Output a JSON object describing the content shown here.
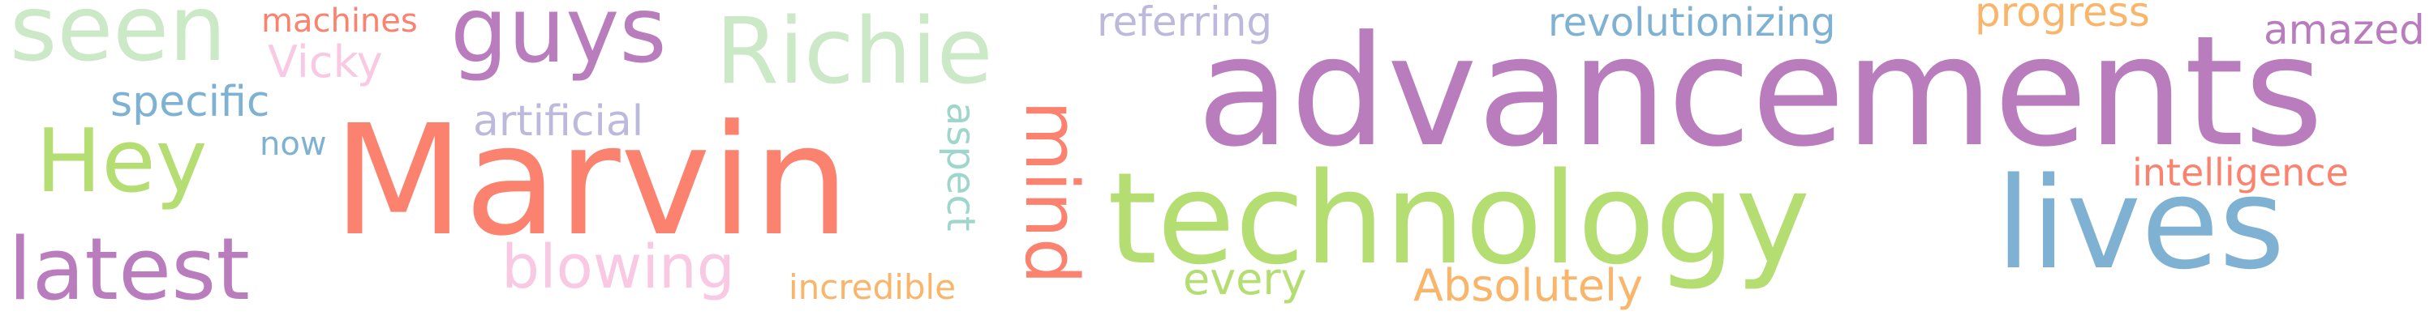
{
  "palette": {
    "purple": "#b97cbd",
    "green": "#b4dd72",
    "salmon": "#fb826f",
    "blue": "#7fb2d2",
    "pale_green": "#cbe9c6",
    "pink": "#f9c8e2",
    "lavender": "#bcb9dd",
    "teal": "#9fd6cc",
    "orange": "#f9b56a"
  },
  "words": [
    {
      "text": "advancements",
      "color": "purple"
    },
    {
      "text": "Marvin",
      "color": "salmon"
    },
    {
      "text": "technology",
      "color": "green"
    },
    {
      "text": "lives",
      "color": "blue"
    },
    {
      "text": "Richie",
      "color": "pale_green"
    },
    {
      "text": "guys",
      "color": "purple"
    },
    {
      "text": "seen",
      "color": "pale_green"
    },
    {
      "text": "latest",
      "color": "purple"
    },
    {
      "text": "Hey",
      "color": "green"
    },
    {
      "text": "mind",
      "color": "salmon"
    },
    {
      "text": "blowing",
      "color": "pink"
    },
    {
      "text": "specific",
      "color": "blue"
    },
    {
      "text": "artificial",
      "color": "lavender"
    },
    {
      "text": "Vicky",
      "color": "pink"
    },
    {
      "text": "machines",
      "color": "salmon"
    },
    {
      "text": "now",
      "color": "blue"
    },
    {
      "text": "aspect",
      "color": "teal"
    },
    {
      "text": "incredible",
      "color": "orange"
    },
    {
      "text": "referring",
      "color": "lavender"
    },
    {
      "text": "revolutionizing",
      "color": "blue"
    },
    {
      "text": "progress",
      "color": "orange"
    },
    {
      "text": "amazed",
      "color": "purple"
    },
    {
      "text": "intelligence",
      "color": "salmon"
    },
    {
      "text": "every",
      "color": "green"
    },
    {
      "text": "Absolutely",
      "color": "orange"
    }
  ]
}
